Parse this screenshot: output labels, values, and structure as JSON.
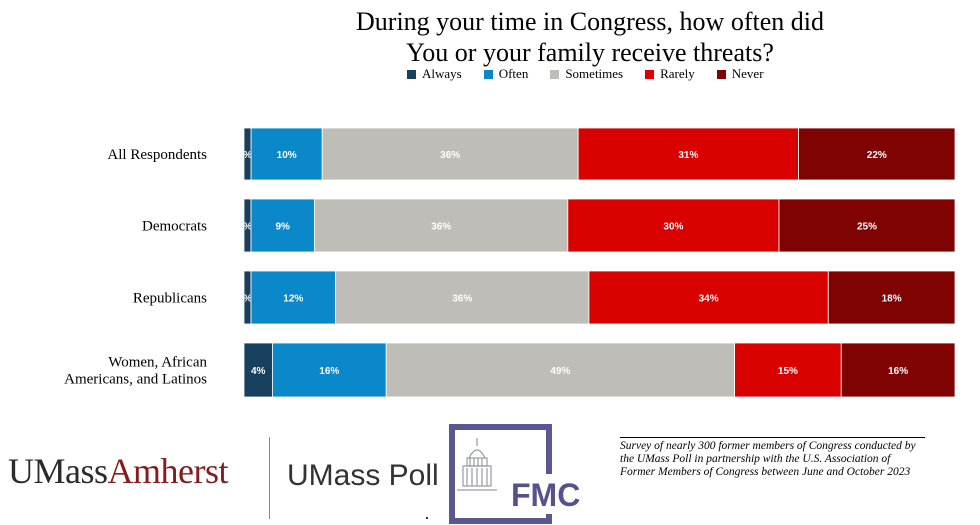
{
  "chart_data": {
    "type": "bar",
    "orientation": "horizontal",
    "stacked": true,
    "title_line1": "During your time in Congress, how often did",
    "title_line2": "You or your family receive threats?",
    "categories": [
      "All Respondents",
      "Democrats",
      "Republicans",
      "Women, African Americans, and Latinos"
    ],
    "category_lines": [
      [
        "All Respondents"
      ],
      [
        "Democrats"
      ],
      [
        "Republicans"
      ],
      [
        "Women, African",
        "Americans, and Latinos"
      ]
    ],
    "series": [
      {
        "name": "Always",
        "color": "#17405e",
        "values": [
          1,
          1,
          1,
          4
        ],
        "labels": [
          "%",
          "%",
          "%",
          "4%"
        ]
      },
      {
        "name": "Often",
        "color": "#0a88c9",
        "values": [
          10,
          9,
          12,
          16
        ],
        "labels": [
          "10%",
          "9%",
          "12%",
          "16%"
        ]
      },
      {
        "name": "Sometimes",
        "color": "#bfbdb8",
        "values": [
          36,
          36,
          36,
          49
        ],
        "labels": [
          "36%",
          "36%",
          "36%",
          "49%"
        ]
      },
      {
        "name": "Rarely",
        "color": "#d90000",
        "values": [
          31,
          30,
          34,
          15
        ],
        "labels": [
          "31%",
          "30%",
          "34%",
          "15%"
        ]
      },
      {
        "name": "Never",
        "color": "#7f0303",
        "values": [
          22,
          25,
          18,
          16
        ],
        "labels": [
          "22%",
          "25%",
          "18%",
          "16%"
        ]
      }
    ],
    "legend_position": "top",
    "grid": false
  },
  "footer": {
    "umass_part1": "UMass",
    "umass_part2": "Amherst",
    "umass_poll": "UMass Poll",
    "fmc": "FMC",
    "note": "Survey of nearly 300 former members of Congress conducted by the UMass Poll in partnership with the U.S. Association of Former Members of Congress between June and October 2023"
  }
}
